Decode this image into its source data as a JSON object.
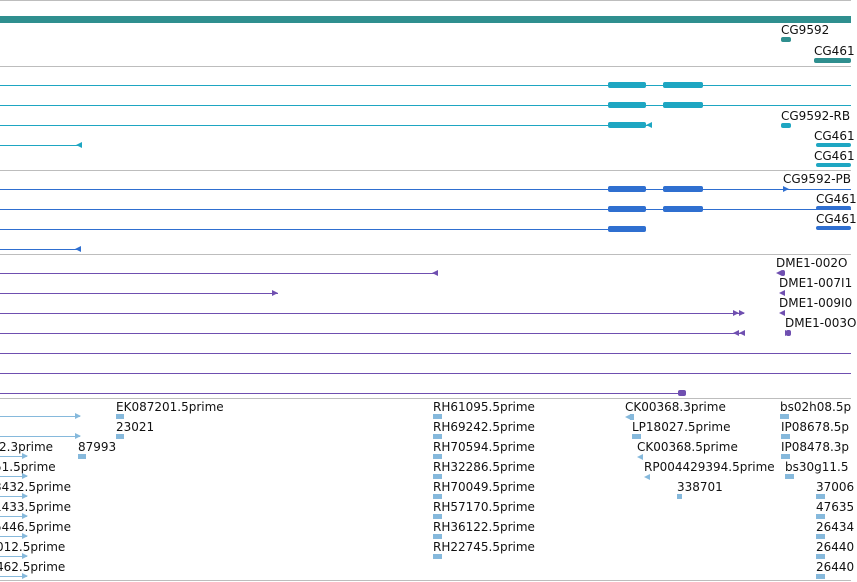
{
  "colors": {
    "gene": "#2f8f8f",
    "transcript": "#1ea6c2",
    "cds": "#2f6fd0",
    "cdna": "#6f4fb0",
    "est": "#86b9dc",
    "divider": "#bdbdbd"
  },
  "genes": {
    "labels": [
      "CG9592",
      "CG461"
    ]
  },
  "transcripts": {
    "labels": [
      "CG9592-RB",
      "CG461",
      "CG461"
    ]
  },
  "proteins": {
    "labels": [
      "CG9592-PB",
      "CG461",
      "CG461"
    ]
  },
  "cdnas": {
    "labels": [
      "DME1-002O",
      "DME1-007I1",
      "DME1-009I0",
      "DME1-003O"
    ]
  },
  "ests": {
    "col0": [
      "2.3prime",
      "51.5prime",
      "3432.5prime",
      "1433.5prime",
      "5446.5prime",
      "012.5prime",
      "462.5prime"
    ],
    "col1": [
      "EK087201.5prime",
      "23021",
      "87993"
    ],
    "col2": [
      "RH61095.5prime",
      "RH69242.5prime",
      "RH70594.5prime",
      "RH32286.5prime",
      "RH70049.5prime",
      "RH57170.5prime",
      "RH36122.5prime",
      "RH22745.5prime"
    ],
    "col3": [
      "CK00368.3prime",
      "LP18027.5prime",
      "CK00368.5prime",
      "RP004429394.5prime",
      "338701"
    ],
    "col4": [
      "bs02h08.5p",
      "IP08678.5p",
      "IP08478.3p",
      "bs30g11.5",
      "37006",
      "47635",
      "26434",
      "26440",
      "26440"
    ]
  }
}
